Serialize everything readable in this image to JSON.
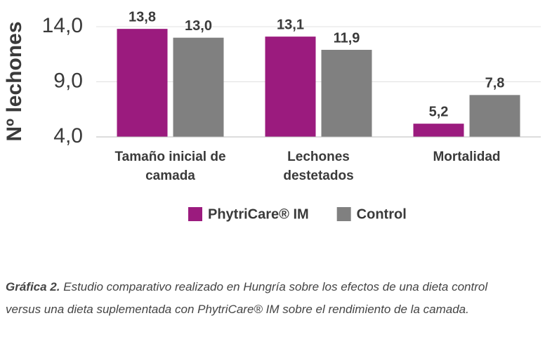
{
  "chart_data": {
    "type": "bar",
    "y_label": "Nº lechones",
    "categories": [
      "Tamaño inicial de camada",
      "Lechones destetados",
      "Mortalidad"
    ],
    "series": [
      {
        "name": "PhytriCare® IM",
        "color": "#9b1b7e",
        "values": [
          13.8,
          13.1,
          5.2
        ],
        "value_labels": [
          "13,8",
          "13,1",
          "5,2"
        ]
      },
      {
        "name": "Control",
        "color": "#808080",
        "values": [
          13.0,
          11.9,
          7.8
        ],
        "value_labels": [
          "13,0",
          "11,9",
          "7,8"
        ]
      }
    ],
    "ylim": [
      4,
      14
    ],
    "yticks": [
      {
        "value": 4,
        "label": "4,0"
      },
      {
        "value": 9,
        "label": "9,0"
      },
      {
        "value": 14,
        "label": "14,0"
      }
    ],
    "grid": true
  },
  "caption": {
    "label": "Gráfica 2.",
    "text": "Estudio comparativo realizado en Hungría sobre los efectos de una dieta control versus una dieta suplementada con PhytriCare® IM sobre el rendimiento de la camada."
  }
}
